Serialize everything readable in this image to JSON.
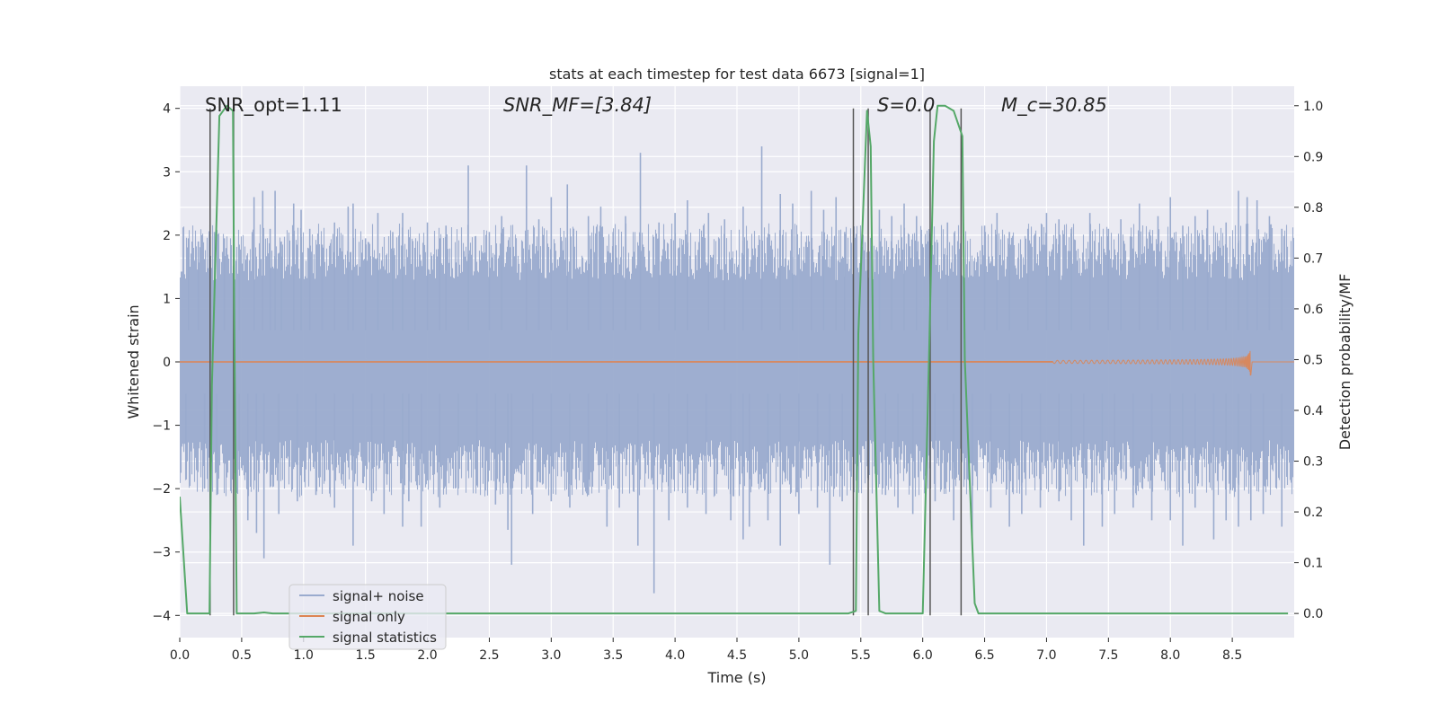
{
  "chart_data": {
    "type": "line",
    "title": "stats at each timestep for test data 6673 [signal=1]",
    "xlabel": "Time (s)",
    "ylabel_left": "Whitened strain",
    "ylabel_right": "Detection probability/MF",
    "xlim": [
      0.0,
      9.0
    ],
    "ylim_left": [
      -4.35,
      4.35
    ],
    "ylim_right": [
      -0.0475,
      1.0385
    ],
    "x_ticks": [
      "0.0",
      "0.5",
      "1.0",
      "1.5",
      "2.0",
      "2.5",
      "3.0",
      "3.5",
      "4.0",
      "4.5",
      "5.0",
      "5.5",
      "6.0",
      "6.5",
      "7.0",
      "7.5",
      "8.0",
      "8.5"
    ],
    "y_ticks_left": [
      "−4",
      "−3",
      "−2",
      "−1",
      "0",
      "1",
      "2",
      "3",
      "4"
    ],
    "y_ticks_right": [
      "0.0",
      "0.1",
      "0.2",
      "0.3",
      "0.4",
      "0.5",
      "0.6",
      "0.7",
      "0.8",
      "0.9",
      "1.0"
    ],
    "grid": true,
    "legend_placement": "lower-left",
    "annotations": {
      "snr_opt": "SNR_opt=1.11",
      "snr_mf": "SNR_MF=[3.84]",
      "s_stat": "S=0.0",
      "chirp_mass": "M_c=30.85"
    },
    "series": [
      {
        "name": "signal+ noise",
        "color": "#9aabce",
        "axis": "left",
        "description_values": {
          "core_band": [
            -1.55,
            1.6
          ],
          "typical_peaks_max": 2.6,
          "extremes": [
            -3.65,
            3.4
          ]
        }
      },
      {
        "name": "signal only",
        "color": "#dd8452",
        "axis": "left",
        "chirp_end_time": 8.65,
        "chirp_peak_amplitude": 0.22
      },
      {
        "name": "signal statistics",
        "color": "#55a868",
        "axis": "right",
        "x": [
          0.0,
          0.06,
          0.24,
          0.26,
          0.32,
          0.38,
          0.43,
          0.44,
          0.46,
          0.6,
          0.68,
          0.75,
          0.9,
          5.3,
          5.4,
          5.46,
          5.48,
          5.55,
          5.58,
          5.6,
          5.65,
          5.7,
          6.0,
          6.05,
          6.09,
          6.12,
          6.18,
          6.25,
          6.32,
          6.34,
          6.42,
          6.45,
          8.95
        ],
        "y": [
          0.23,
          0.0,
          0.0,
          0.45,
          0.98,
          1.0,
          0.99,
          0.6,
          0.0,
          0.0,
          0.002,
          0.0,
          0.0,
          0.0,
          0.0,
          0.005,
          0.55,
          0.99,
          0.92,
          0.5,
          0.005,
          0.0,
          0.0,
          0.5,
          0.93,
          1.0,
          1.0,
          0.99,
          0.94,
          0.5,
          0.02,
          0.0,
          0.0
        ]
      }
    ],
    "vertical_markers": {
      "color": "#555555",
      "axis": "left",
      "lines": [
        {
          "x": 0.245,
          "y_top": 4.0,
          "y_bottom": -4.0
        },
        {
          "x": 0.435,
          "y_top": 4.0,
          "y_bottom": -4.0
        },
        {
          "x": 5.44,
          "y_top": 4.0,
          "y_bottom": -4.0
        },
        {
          "x": 5.56,
          "y_top": 4.0,
          "y_bottom": -4.0
        },
        {
          "x": 6.06,
          "y_top": 4.0,
          "y_bottom": -4.0
        },
        {
          "x": 6.31,
          "y_top": 4.0,
          "y_bottom": -4.0
        }
      ]
    },
    "noise_spikes": {
      "up": [
        [
          0.07,
          1.95
        ],
        [
          0.15,
          1.9
        ],
        [
          0.28,
          2.05
        ],
        [
          0.36,
          1.95
        ],
        [
          0.48,
          1.85
        ],
        [
          0.6,
          2.6
        ],
        [
          0.67,
          2.7
        ],
        [
          0.73,
          2.1
        ],
        [
          0.77,
          2.7
        ],
        [
          0.82,
          1.9
        ],
        [
          0.92,
          2.5
        ],
        [
          0.98,
          2.4
        ],
        [
          1.05,
          2.1
        ],
        [
          1.15,
          1.85
        ],
        [
          1.25,
          2.2
        ],
        [
          1.36,
          2.45
        ],
        [
          1.4,
          2.5
        ],
        [
          1.5,
          1.95
        ],
        [
          1.6,
          2.35
        ],
        [
          1.72,
          2.05
        ],
        [
          1.8,
          2.35
        ],
        [
          1.9,
          1.8
        ],
        [
          2.0,
          2.2
        ],
        [
          2.1,
          1.95
        ],
        [
          2.15,
          2.15
        ],
        [
          2.33,
          3.1
        ],
        [
          2.5,
          2.05
        ],
        [
          2.6,
          2.3
        ],
        [
          2.8,
          3.1
        ],
        [
          2.9,
          2.25
        ],
        [
          3.0,
          2.6
        ],
        [
          3.13,
          2.8
        ],
        [
          3.3,
          2.3
        ],
        [
          3.4,
          2.45
        ],
        [
          3.5,
          2.05
        ],
        [
          3.6,
          2.3
        ],
        [
          3.72,
          3.3
        ],
        [
          3.87,
          2.2
        ],
        [
          4.0,
          2.35
        ],
        [
          4.1,
          2.55
        ],
        [
          4.27,
          2.35
        ],
        [
          4.4,
          2.25
        ],
        [
          4.55,
          2.45
        ],
        [
          4.7,
          3.4
        ],
        [
          4.85,
          2.65
        ],
        [
          4.95,
          2.5
        ],
        [
          5.1,
          2.7
        ],
        [
          5.2,
          2.4
        ],
        [
          5.3,
          2.6
        ],
        [
          5.37,
          2.05
        ],
        [
          5.65,
          2.4
        ],
        [
          5.75,
          2.3
        ],
        [
          5.85,
          2.5
        ],
        [
          5.95,
          2.3
        ],
        [
          6.2,
          2.2
        ],
        [
          6.5,
          2.15
        ],
        [
          6.6,
          2.35
        ],
        [
          6.7,
          2.05
        ],
        [
          6.85,
          2.1
        ],
        [
          7.0,
          2.35
        ],
        [
          7.1,
          2.25
        ],
        [
          7.2,
          2.1
        ],
        [
          7.35,
          2.35
        ],
        [
          7.5,
          2.1
        ],
        [
          7.6,
          2.25
        ],
        [
          7.75,
          2.5
        ],
        [
          7.9,
          2.3
        ],
        [
          8.0,
          2.6
        ],
        [
          8.1,
          2.15
        ],
        [
          8.2,
          2.3
        ],
        [
          8.3,
          2.4
        ],
        [
          8.45,
          2.2
        ],
        [
          8.55,
          2.7
        ],
        [
          8.62,
          2.6
        ],
        [
          8.7,
          2.55
        ],
        [
          8.8,
          2.3
        ],
        [
          8.9,
          2.1
        ]
      ],
      "down": [
        [
          0.05,
          -1.7
        ],
        [
          0.2,
          -2.0
        ],
        [
          0.3,
          -2.1
        ],
        [
          0.48,
          -1.7
        ],
        [
          0.55,
          -2.5
        ],
        [
          0.62,
          -2.7
        ],
        [
          0.68,
          -3.1
        ],
        [
          0.8,
          -2.4
        ],
        [
          0.95,
          -2.2
        ],
        [
          1.1,
          -2.1
        ],
        [
          1.25,
          -2.3
        ],
        [
          1.4,
          -2.9
        ],
        [
          1.55,
          -2.2
        ],
        [
          1.65,
          -2.4
        ],
        [
          1.8,
          -2.6
        ],
        [
          1.85,
          -2.2
        ],
        [
          1.95,
          -2.6
        ],
        [
          2.1,
          -2.3
        ],
        [
          2.25,
          -2.0
        ],
        [
          2.4,
          -1.95
        ],
        [
          2.55,
          -2.25
        ],
        [
          2.65,
          -2.65
        ],
        [
          2.68,
          -3.2
        ],
        [
          2.85,
          -2.4
        ],
        [
          3.0,
          -2.2
        ],
        [
          3.15,
          -2.3
        ],
        [
          3.3,
          -2.1
        ],
        [
          3.45,
          -2.6
        ],
        [
          3.55,
          -2.3
        ],
        [
          3.7,
          -2.9
        ],
        [
          3.83,
          -3.65
        ],
        [
          3.95,
          -2.5
        ],
        [
          4.1,
          -2.3
        ],
        [
          4.25,
          -2.4
        ],
        [
          4.45,
          -2.5
        ],
        [
          4.55,
          -2.8
        ],
        [
          4.6,
          -2.6
        ],
        [
          4.75,
          -2.5
        ],
        [
          4.85,
          -2.9
        ],
        [
          5.0,
          -2.4
        ],
        [
          5.15,
          -2.3
        ],
        [
          5.25,
          -3.2
        ],
        [
          5.35,
          -2.2
        ],
        [
          5.7,
          -2.1
        ],
        [
          5.8,
          -2.3
        ],
        [
          5.92,
          -2.4
        ],
        [
          6.1,
          -2.2
        ],
        [
          6.25,
          -2.5
        ],
        [
          6.4,
          -2.9
        ],
        [
          6.55,
          -2.3
        ],
        [
          6.7,
          -2.6
        ],
        [
          6.8,
          -2.4
        ],
        [
          6.95,
          -2.3
        ],
        [
          7.1,
          -2.2
        ],
        [
          7.2,
          -2.5
        ],
        [
          7.3,
          -2.9
        ],
        [
          7.45,
          -2.6
        ],
        [
          7.55,
          -2.4
        ],
        [
          7.7,
          -2.3
        ],
        [
          7.85,
          -2.5
        ],
        [
          8.0,
          -2.5
        ],
        [
          8.1,
          -2.9
        ],
        [
          8.2,
          -2.3
        ],
        [
          8.35,
          -2.8
        ],
        [
          8.45,
          -2.5
        ],
        [
          8.55,
          -2.6
        ],
        [
          8.65,
          -2.5
        ],
        [
          8.75,
          -2.4
        ],
        [
          8.9,
          -2.6
        ]
      ]
    }
  }
}
